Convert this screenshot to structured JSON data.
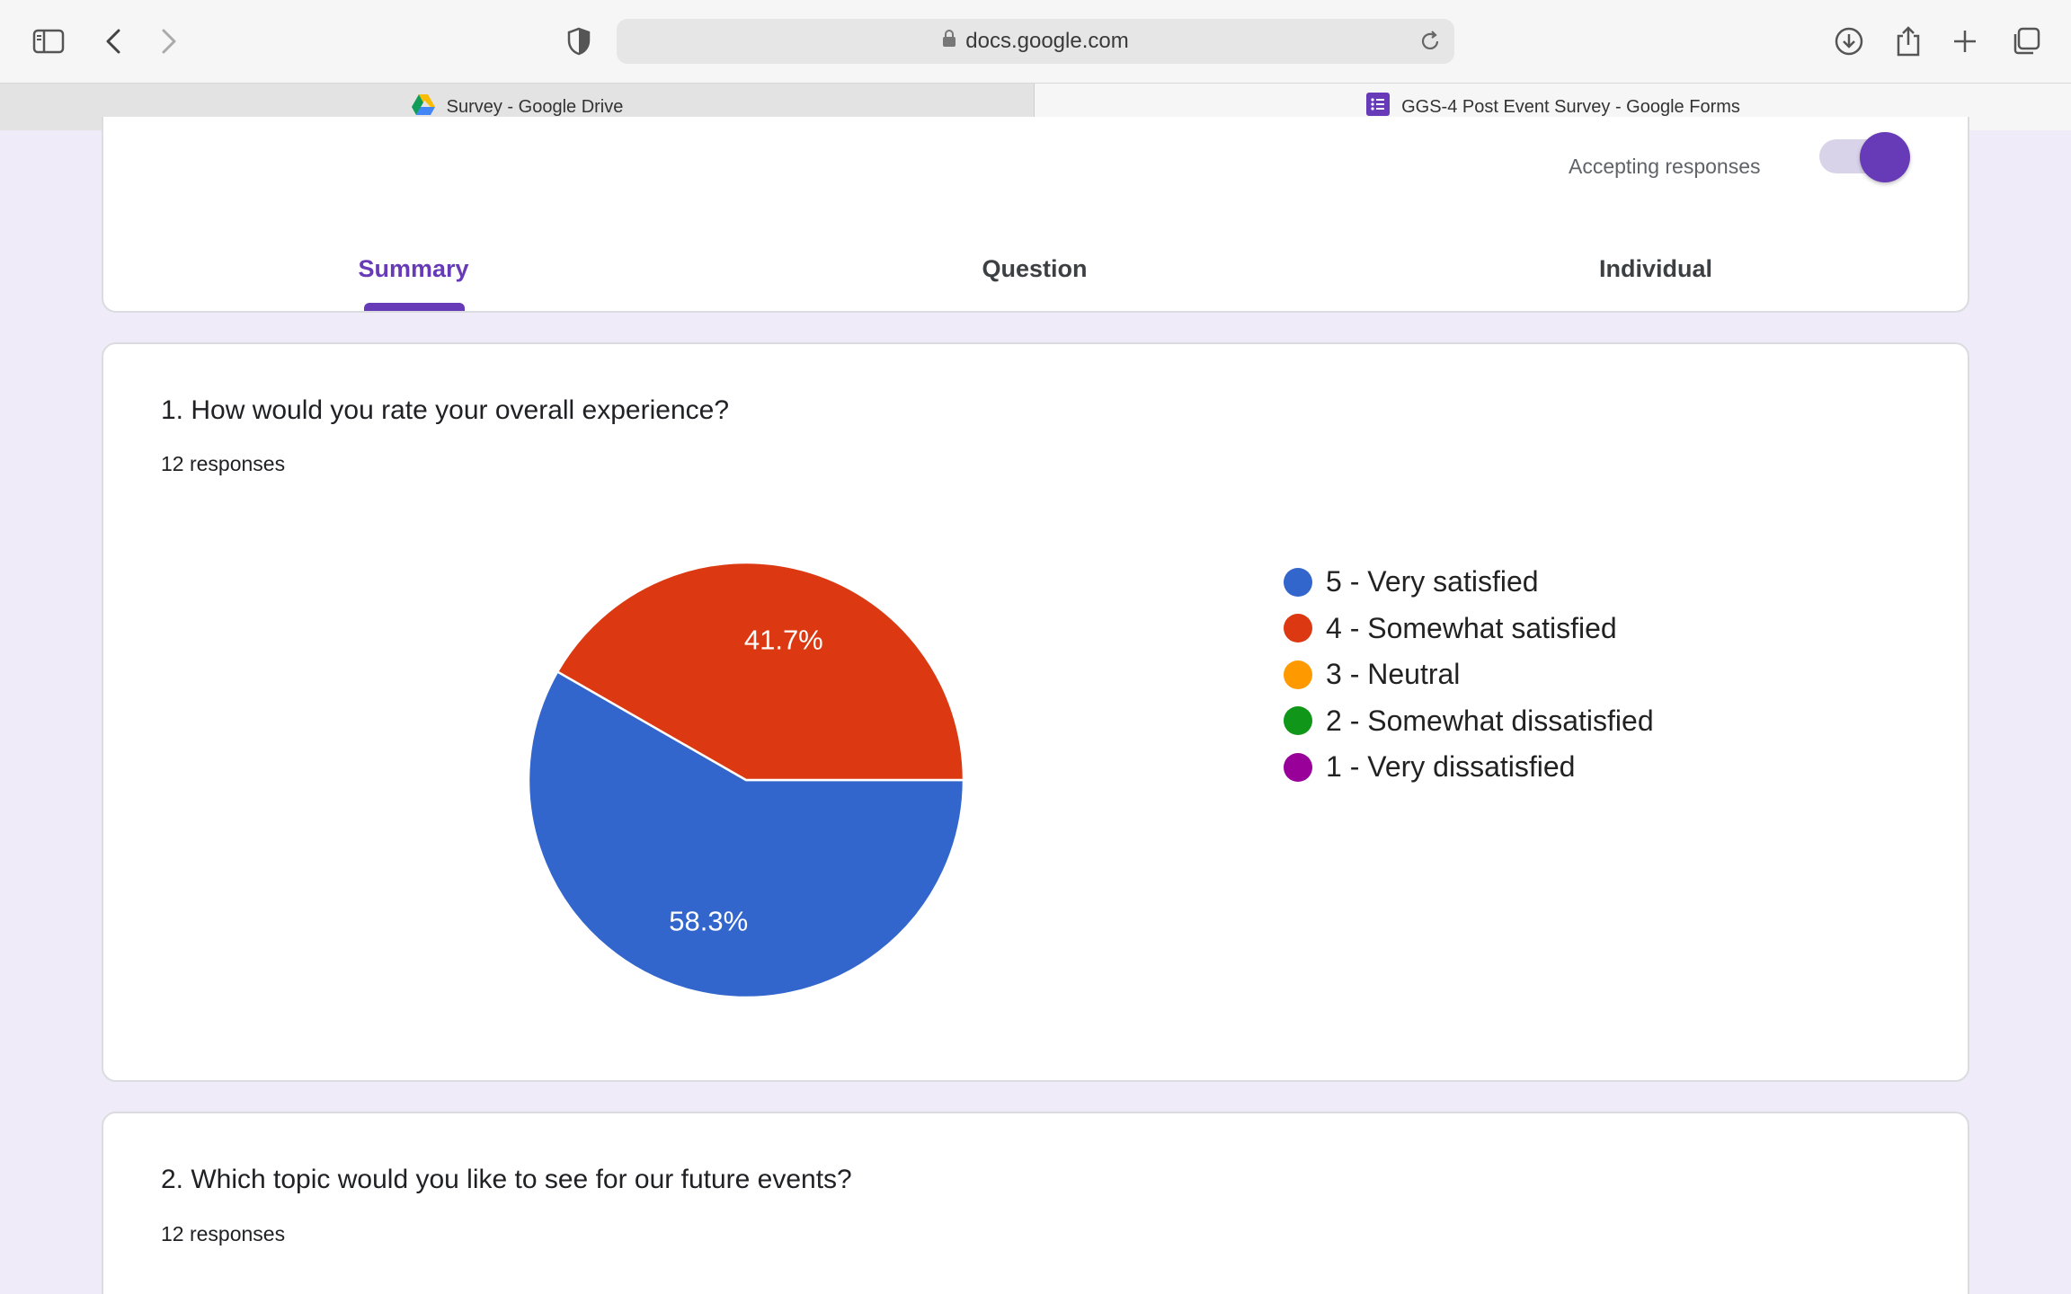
{
  "browser": {
    "url": "docs.google.com",
    "tabs": [
      {
        "label": "Survey - Google Drive",
        "active": false
      },
      {
        "label": "GGS-4 Post Event Survey - Google Forms",
        "active": true
      }
    ]
  },
  "form": {
    "accepting_label": "Accepting responses",
    "accepting_on": true,
    "nav": {
      "summary": "Summary",
      "question": "Question",
      "individual": "Individual"
    },
    "questions": [
      {
        "title": "1. How would you rate your overall experience?",
        "responses": "12 responses"
      },
      {
        "title": "2. Which topic would you like to see for our future events?",
        "responses": "12 responses"
      }
    ]
  },
  "chart_data": {
    "type": "pie",
    "categories": [
      "5 - Very satisfied",
      "4 - Somewhat satisfied",
      "3 - Neutral",
      "2 - Somewhat dissatisfied",
      "1 - Very dissatisfied"
    ],
    "values": [
      58.3,
      41.7,
      0,
      0,
      0
    ],
    "labels": [
      "58.3%",
      "41.7%"
    ],
    "colors": [
      "#3366cc",
      "#dc3912",
      "#ff9900",
      "#109618",
      "#990099"
    ],
    "legend_position": "right"
  }
}
